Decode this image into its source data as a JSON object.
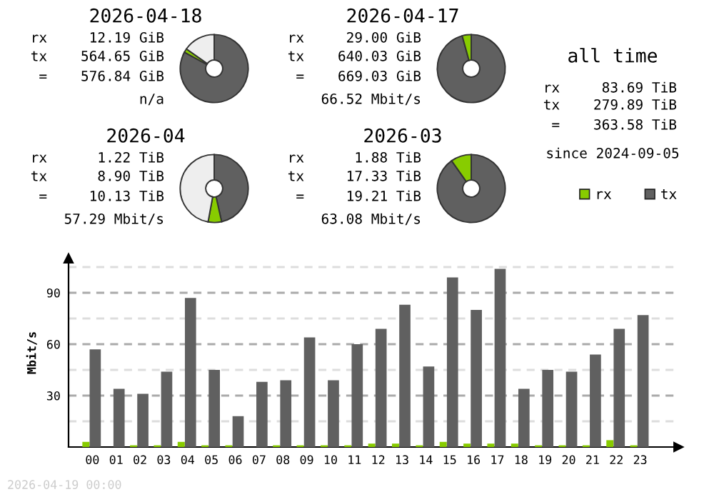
{
  "chart_data": [
    {
      "type": "donut",
      "title": "2026-04-18",
      "categories": [
        "tx",
        "rx",
        null
      ],
      "values": [
        83.0,
        1.8,
        15.2
      ],
      "colors": [
        "#606060",
        "#88cc00",
        "#eeeeee"
      ],
      "legend": "right",
      "annotations": [
        "rx     12.19 GiB",
        "tx    564.65 GiB",
        " =    576.84 GiB",
        "n/a"
      ]
    },
    {
      "type": "donut",
      "title": "2026-04-17",
      "categories": [
        null,
        null
      ],
      "values": [
        95.7,
        4.3
      ],
      "colors": [
        "#606060",
        "#88cc00"
      ],
      "annotations": [
        "rx     29.00 GiB",
        "tx    640.03 GiB",
        " =    669.03 GiB",
        "66.52 Mbit/s"
      ]
    },
    {
      "type": "other",
      "title": "all time",
      "annotations": [
        "rx     83.69 TiB",
        "tx    279.89 TiB",
        " =    363.58 TiB",
        "since 2024-09-05"
      ]
    },
    {
      "type": "donut",
      "title": "2026-04",
      "categories": [
        null,
        null,
        null
      ],
      "values": [
        46.5,
        6.4,
        47.1
      ],
      "colors": [
        "#606060",
        "#88cc00",
        "#eeeeee"
      ],
      "annotations": [
        "rx      1.22 TiB",
        "tx      8.90 TiB",
        " =     10.13 TiB",
        "57.29 Mbit/s"
      ]
    },
    {
      "type": "donut",
      "title": "2026-03",
      "categories": [
        null,
        null
      ],
      "values": [
        90.2,
        9.8
      ],
      "colors": [
        "#606060",
        "#88cc00"
      ],
      "annotations": [
        "rx      1.88 TiB",
        "tx     17.33 TiB",
        " =     19.21 TiB",
        "63.08 Mbit/s"
      ]
    },
    {
      "type": "bar",
      "ylabel": "Mbit/s",
      "grid": "y",
      "x": [
        0,
        1,
        2,
        3,
        4,
        5,
        6,
        7,
        8,
        9,
        10,
        11,
        12,
        13,
        14,
        15,
        16,
        17,
        18,
        19,
        20,
        21,
        22,
        23
      ],
      "xlim": [
        -1,
        24.6
      ],
      "xticks": [
        {
          "value": 0,
          "label": "00"
        },
        {
          "value": 1,
          "label": "01"
        },
        {
          "value": 2,
          "label": "02"
        },
        {
          "value": 3,
          "label": "03"
        },
        {
          "value": 4,
          "label": "04"
        },
        {
          "value": 5,
          "label": "05"
        },
        {
          "value": 6,
          "label": "06"
        },
        {
          "value": 7,
          "label": "07"
        },
        {
          "value": 8,
          "label": "08"
        },
        {
          "value": 9,
          "label": "09"
        },
        10,
        11,
        12,
        13,
        14,
        15,
        16,
        17,
        18,
        19,
        20,
        21,
        22,
        23
      ],
      "series": [
        {
          "color": "#88cc00",
          "values": [
            3,
            0,
            1,
            1,
            3,
            1,
            1,
            0,
            1,
            1,
            1,
            1,
            2,
            2,
            1,
            3,
            2,
            2,
            2,
            1,
            1,
            1,
            4,
            1
          ]
        },
        {
          "color": "#606060",
          "values": [
            57,
            34,
            31,
            44,
            87,
            45,
            18,
            38,
            39,
            64,
            39,
            60,
            69,
            83,
            47,
            99,
            80,
            104,
            34,
            45,
            44,
            54,
            69,
            77
          ]
        }
      ],
      "ylim": [
        0,
        110
      ],
      "yticks": [
        {
          "value": 15,
          "label": null
        },
        30,
        {
          "value": 45,
          "label": null
        },
        60,
        {
          "value": 75,
          "label": null
        },
        90,
        {
          "value": 105,
          "label": null
        }
      ],
      "annotations": [
        "2026-04-19 00:00"
      ]
    }
  ]
}
